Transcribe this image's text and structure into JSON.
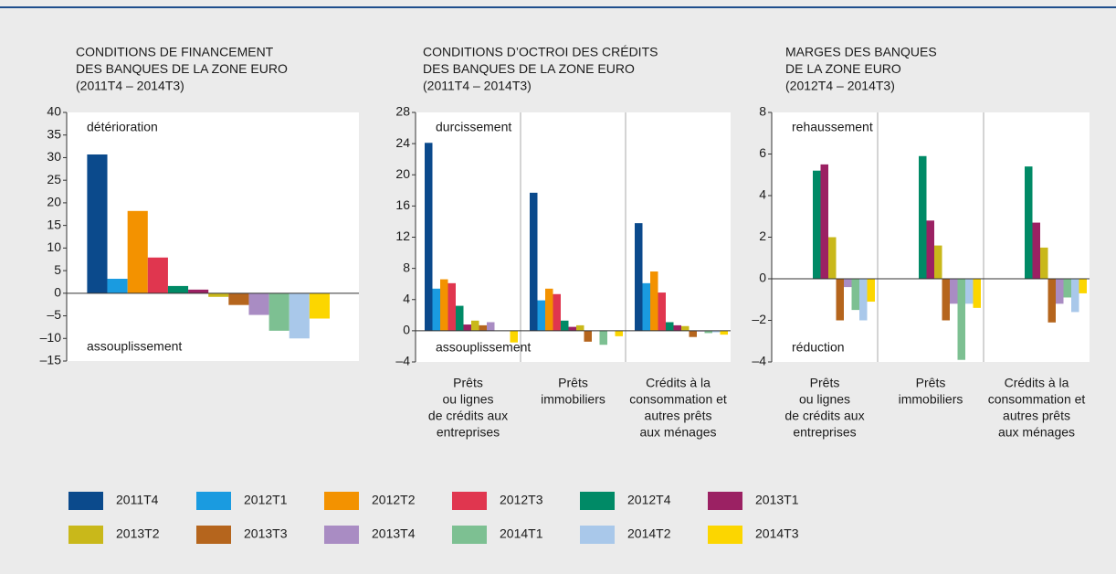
{
  "chart_data": [
    {
      "type": "bar",
      "title": [
        "CONDITIONS DE FINANCEMENT",
        "DES BANQUES DE LA ZONE EURO",
        "(2011T4 – 2014T3)"
      ],
      "annotations": [
        "détérioration",
        "assouplissement"
      ],
      "ylim": [
        -15,
        40
      ],
      "yticks": [
        {
          "value": -15,
          "label": "–15"
        },
        {
          "value": -10,
          "label": "–10"
        },
        {
          "value": -5,
          "label": "–5"
        },
        0,
        5,
        10,
        15,
        20,
        25,
        30,
        35,
        40
      ],
      "series": [
        {
          "name": "2011T4",
          "color": "#0b4a8c",
          "values": [
            30.7
          ]
        },
        {
          "name": "2012T1",
          "color": "#1a9be0",
          "values": [
            3.2
          ]
        },
        {
          "name": "2012T2",
          "color": "#f39200",
          "values": [
            18.2
          ]
        },
        {
          "name": "2012T3",
          "color": "#e0364f",
          "values": [
            7.9
          ]
        },
        {
          "name": "2012T4",
          "color": "#008a66",
          "values": [
            1.6
          ]
        },
        {
          "name": "2013T1",
          "color": "#9b2163",
          "values": [
            0.8
          ]
        },
        {
          "name": "2013T2",
          "color": "#c9b81a",
          "values": [
            -0.8
          ]
        },
        {
          "name": "2013T3",
          "color": "#b5651d",
          "values": [
            -2.6
          ]
        },
        {
          "name": "2013T4",
          "color": "#a98cc3",
          "values": [
            -4.8
          ]
        },
        {
          "name": "2014T1",
          "color": "#7dc092",
          "values": [
            -8.3
          ]
        },
        {
          "name": "2014T2",
          "color": "#a9c8ea",
          "values": [
            -10.0
          ]
        },
        {
          "name": "2014T3",
          "color": "#fcd600",
          "values": [
            -5.6
          ]
        }
      ]
    },
    {
      "type": "bar",
      "title": [
        "CONDITIONS D’OCTROI DES CRÉDITS",
        "DES BANQUES DE LA ZONE EURO",
        "(2011T4 – 2014T3)"
      ],
      "annotations": [
        "durcissement",
        "assouplissement"
      ],
      "categories": [
        [
          "Prêts",
          "ou lignes",
          "de crédits aux",
          "entreprises"
        ],
        [
          "Prêts",
          "immobiliers"
        ],
        [
          "Crédits à la",
          "consommation et",
          "autres prêts",
          "aux ménages"
        ]
      ],
      "ylim": [
        -4,
        28
      ],
      "yticks": [
        {
          "value": -4,
          "label": "–4"
        },
        0,
        4,
        8,
        12,
        16,
        20,
        24,
        28
      ],
      "series": [
        {
          "name": "2011T4",
          "color": "#0b4a8c",
          "values": [
            24.1,
            17.7,
            13.8
          ]
        },
        {
          "name": "2012T1",
          "color": "#1a9be0",
          "values": [
            5.4,
            3.9,
            6.1
          ]
        },
        {
          "name": "2012T2",
          "color": "#f39200",
          "values": [
            6.6,
            5.4,
            7.6
          ]
        },
        {
          "name": "2012T3",
          "color": "#e0364f",
          "values": [
            6.1,
            4.7,
            4.9
          ]
        },
        {
          "name": "2012T4",
          "color": "#008a66",
          "values": [
            3.2,
            1.3,
            1.1
          ]
        },
        {
          "name": "2013T1",
          "color": "#9b2163",
          "values": [
            0.8,
            0.5,
            0.7
          ]
        },
        {
          "name": "2013T2",
          "color": "#c9b81a",
          "values": [
            1.3,
            0.7,
            0.6
          ]
        },
        {
          "name": "2013T3",
          "color": "#b5651d",
          "values": [
            0.7,
            -1.4,
            -0.8
          ]
        },
        {
          "name": "2013T4",
          "color": "#a98cc3",
          "values": [
            1.1,
            0,
            -0.1
          ]
        },
        {
          "name": "2014T1",
          "color": "#7dc092",
          "values": [
            0,
            -1.8,
            -0.3
          ]
        },
        {
          "name": "2014T2",
          "color": "#a9c8ea",
          "values": [
            0,
            0,
            -0.2
          ]
        },
        {
          "name": "2014T3",
          "color": "#fcd600",
          "values": [
            -1.5,
            -0.7,
            -0.5
          ]
        }
      ]
    },
    {
      "type": "bar",
      "title": [
        "MARGES DES BANQUES",
        "DE LA ZONE EURO",
        "(2012T4 – 2014T3)"
      ],
      "annotations": [
        "rehaussement",
        "réduction"
      ],
      "categories": [
        [
          "Prêts",
          "ou lignes",
          "de crédits aux",
          "entreprises"
        ],
        [
          "Prêts",
          "immobiliers"
        ],
        [
          "Crédits à la",
          "consommation et",
          "autres prêts",
          "aux ménages"
        ]
      ],
      "ylim": [
        -4,
        8
      ],
      "yticks": [
        {
          "value": -4,
          "label": "–4"
        },
        {
          "value": -2,
          "label": "–2"
        },
        0,
        2,
        4,
        6,
        8
      ],
      "series": [
        {
          "name": "2012T4",
          "color": "#008a66",
          "values": [
            5.2,
            5.9,
            5.4
          ]
        },
        {
          "name": "2013T1",
          "color": "#9b2163",
          "values": [
            5.5,
            2.8,
            2.7
          ]
        },
        {
          "name": "2013T2",
          "color": "#c9b81a",
          "values": [
            2.0,
            1.6,
            1.5
          ]
        },
        {
          "name": "2013T3",
          "color": "#b5651d",
          "values": [
            -2.0,
            -2.0,
            -2.1
          ]
        },
        {
          "name": "2013T4",
          "color": "#a98cc3",
          "values": [
            -0.4,
            -1.2,
            -1.2
          ]
        },
        {
          "name": "2014T1",
          "color": "#7dc092",
          "values": [
            -1.5,
            -3.9,
            -0.9
          ]
        },
        {
          "name": "2014T2",
          "color": "#a9c8ea",
          "values": [
            -2.0,
            -1.2,
            -1.6
          ]
        },
        {
          "name": "2014T3",
          "color": "#fcd600",
          "values": [
            -1.1,
            -1.4,
            -0.7
          ]
        }
      ]
    }
  ]
}
